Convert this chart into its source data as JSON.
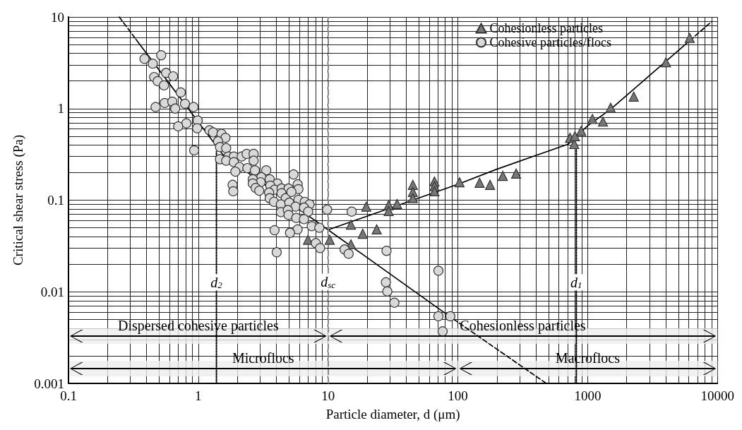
{
  "chart_data": {
    "type": "scatter",
    "xlabel": "Particle diameter, d (μm)",
    "ylabel": "Critical shear stress (Pa)",
    "log": "xy",
    "grid": true,
    "legend": "top right",
    "xlim": [
      0.1,
      10000
    ],
    "ylim": [
      0.001,
      10
    ],
    "xticks": [
      0.1,
      {
        "value": 0.2,
        "label": null
      },
      {
        "value": 0.3,
        "label": null
      },
      {
        "value": 0.4,
        "label": null
      },
      {
        "value": 0.5,
        "label": null
      },
      {
        "value": 0.6,
        "label": null
      },
      {
        "value": 0.7,
        "label": null
      },
      {
        "value": 0.8,
        "label": null
      },
      {
        "value": 0.9,
        "label": null
      },
      1,
      {
        "value": 2,
        "label": null
      },
      {
        "value": 3,
        "label": null
      },
      {
        "value": 4,
        "label": null
      },
      {
        "value": 5,
        "label": null
      },
      {
        "value": 6,
        "label": null
      },
      {
        "value": 7,
        "label": null
      },
      {
        "value": 8,
        "label": null
      },
      {
        "value": 9,
        "label": null
      },
      10,
      {
        "value": 20,
        "label": null
      },
      {
        "value": 30,
        "label": null
      },
      {
        "value": 40,
        "label": null
      },
      {
        "value": 50,
        "label": null
      },
      {
        "value": 60,
        "label": null
      },
      {
        "value": 70,
        "label": null
      },
      {
        "value": 80,
        "label": null
      },
      {
        "value": 90,
        "label": null
      },
      100,
      {
        "value": 200,
        "label": null
      },
      {
        "value": 300,
        "label": null
      },
      {
        "value": 400,
        "label": null
      },
      {
        "value": 500,
        "label": null
      },
      {
        "value": 600,
        "label": null
      },
      {
        "value": 700,
        "label": null
      },
      {
        "value": 800,
        "label": null
      },
      {
        "value": 900,
        "label": null
      },
      1000,
      {
        "value": 2000,
        "label": null
      },
      {
        "value": 3000,
        "label": null
      },
      {
        "value": 4000,
        "label": null
      },
      {
        "value": 5000,
        "label": null
      },
      {
        "value": 6000,
        "label": null
      },
      {
        "value": 7000,
        "label": null
      },
      {
        "value": 8000,
        "label": null
      },
      {
        "value": 9000,
        "label": null
      },
      10000
    ],
    "yticks": [
      0.001,
      {
        "value": 0.002,
        "label": null
      },
      {
        "value": 0.003,
        "label": null
      },
      {
        "value": 0.004,
        "label": null
      },
      {
        "value": 0.005,
        "label": null
      },
      {
        "value": 0.006,
        "label": null
      },
      {
        "value": 0.007,
        "label": null
      },
      {
        "value": 0.008,
        "label": null
      },
      {
        "value": 0.009,
        "label": null
      },
      0.01,
      {
        "value": 0.02,
        "label": null
      },
      {
        "value": 0.03,
        "label": null
      },
      {
        "value": 0.04,
        "label": null
      },
      {
        "value": 0.05,
        "label": null
      },
      {
        "value": 0.06,
        "label": null
      },
      {
        "value": 0.07,
        "label": null
      },
      {
        "value": 0.08,
        "label": null
      },
      {
        "value": 0.09,
        "label": null
      },
      0.1,
      {
        "value": 0.2,
        "label": null
      },
      {
        "value": 0.3,
        "label": null
      },
      {
        "value": 0.4,
        "label": null
      },
      {
        "value": 0.5,
        "label": null
      },
      {
        "value": 0.6,
        "label": null
      },
      {
        "value": 0.7,
        "label": null
      },
      {
        "value": 0.8,
        "label": null
      },
      {
        "value": 0.9,
        "label": null
      },
      1,
      {
        "value": 2,
        "label": null
      },
      {
        "value": 3,
        "label": null
      },
      {
        "value": 4,
        "label": null
      },
      {
        "value": 5,
        "label": null
      },
      {
        "value": 6,
        "label": null
      },
      {
        "value": 7,
        "label": null
      },
      {
        "value": 8,
        "label": null
      },
      {
        "value": 9,
        "label": null
      },
      10
    ],
    "series": [
      {
        "name": "Cohesionless particles",
        "type": "scatter",
        "marker": "triangle",
        "color": "#777777",
        "x": [
          7.0,
          10.3,
          15,
          15,
          18.5,
          23.7,
          19.7,
          29.3,
          29.3,
          34,
          45,
          45,
          45,
          66,
          66,
          66,
          103,
          147,
          177,
          222,
          281,
          731,
          788,
          798,
          892,
          1088,
          1312,
          1503,
          2265,
          4010,
          6110
        ],
        "values": [
          0.037,
          0.037,
          0.054,
          0.033,
          0.043,
          0.048,
          0.085,
          0.088,
          0.076,
          0.091,
          0.147,
          0.123,
          0.105,
          0.16,
          0.142,
          0.125,
          0.157,
          0.155,
          0.147,
          0.184,
          0.195,
          0.48,
          0.41,
          0.5,
          0.57,
          0.77,
          0.72,
          1.02,
          1.35,
          3.2,
          5.9
        ]
      },
      {
        "name": "Cohesive particles/flocs",
        "type": "scatter",
        "marker": "circle",
        "color": "#d9d9d9",
        "x": [
          0.385,
          0.518,
          0.446,
          0.565,
          0.64,
          0.457,
          0.487,
          0.544,
          0.733,
          0.469,
          0.551,
          0.631,
          0.664,
          0.79,
          0.92,
          0.99,
          0.98,
          0.81,
          0.7,
          0.93,
          1.22,
          1.3,
          1.51,
          1.62,
          1.42,
          1.47,
          1.64,
          1.71,
          1.88,
          2.16,
          1.47,
          1.64,
          1.88,
          2.08,
          1.93,
          1.84,
          1.86,
          2.36,
          2.67,
          2.67,
          2.39,
          2.73,
          3.34,
          3.06,
          2.63,
          3.02,
          3.55,
          4.07,
          2.63,
          2.77,
          2.95,
          3.59,
          3.87,
          4.38,
          4.96,
          5.42,
          5.83,
          5.91,
          3.51,
          3.55,
          4.38,
          4.72,
          5.22,
          3.83,
          4.33,
          5.91,
          5.03,
          6.61,
          7.2,
          5.62,
          6.52,
          7.03,
          4.33,
          4.9,
          4.96,
          5.69,
          6.52,
          7.48,
          8.57,
          9.83,
          5.83,
          5.09,
          3.87,
          4.02,
          8.05,
          8.68,
          13.4,
          14.4,
          15.2,
          28.2,
          70.8,
          27.9,
          28.6,
          32.4,
          70.8,
          87.5,
          76.3
        ],
        "values": [
          3.49,
          3.82,
          3.09,
          2.45,
          2.25,
          2.21,
          1.99,
          1.79,
          1.5,
          1.04,
          1.15,
          1.19,
          1.0,
          1.13,
          1.04,
          0.74,
          0.61,
          0.69,
          0.64,
          0.35,
          0.58,
          0.55,
          0.53,
          0.48,
          0.44,
          0.38,
          0.37,
          0.3,
          0.3,
          0.3,
          0.28,
          0.27,
          0.26,
          0.23,
          0.205,
          0.147,
          0.125,
          0.32,
          0.32,
          0.27,
          0.224,
          0.212,
          0.212,
          0.178,
          0.169,
          0.157,
          0.169,
          0.152,
          0.152,
          0.136,
          0.127,
          0.144,
          0.13,
          0.134,
          0.134,
          0.191,
          0.149,
          0.132,
          0.121,
          0.105,
          0.119,
          0.105,
          0.123,
          0.096,
          0.09,
          0.101,
          0.094,
          0.096,
          0.09,
          0.085,
          0.083,
          0.075,
          0.074,
          0.078,
          0.069,
          0.064,
          0.062,
          0.052,
          0.05,
          0.079,
          0.048,
          0.044,
          0.047,
          0.027,
          0.034,
          0.03,
          0.029,
          0.026,
          0.075,
          0.028,
          0.017,
          0.0127,
          0.0101,
          0.0076,
          0.0054,
          0.0054,
          0.0037
        ]
      },
      {
        "type": "line",
        "line_style": "dashed",
        "color": "#000000",
        "x": [
          0.246,
          0.331
        ],
        "values": [
          10,
          5.7
        ]
      },
      {
        "type": "line",
        "line_style": "solid",
        "color": "#000000",
        "x": [
          0.331,
          1.56,
          10,
          83
        ],
        "values": [
          5.7,
          0.31,
          0.0475,
          0.0056
        ]
      },
      {
        "type": "line",
        "line_style": "dashed",
        "color": "#000000",
        "x": [
          83,
          480
        ],
        "values": [
          0.0056,
          0.001
        ]
      },
      {
        "type": "line",
        "line_style": "solid",
        "color": "#000000",
        "x": [
          10,
          100,
          198,
          705,
          1000,
          1500,
          6110
        ],
        "values": [
          0.0475,
          0.149,
          0.217,
          0.408,
          0.65,
          0.98,
          5.5
        ]
      },
      {
        "type": "line",
        "line_style": "dashed",
        "color": "#000000",
        "x": [
          6110,
          9000
        ],
        "values": [
          5.5,
          8.9
        ]
      },
      {
        "type": "line",
        "line_style": "dotted",
        "color": "#000000",
        "x": [
          1.38,
          1.38
        ],
        "values": [
          0.001,
          0.34
        ]
      },
      {
        "type": "line",
        "line_style": "dotted",
        "color": "#000000",
        "x": [
          818,
          818
        ],
        "values": [
          0.001,
          0.41
        ]
      }
    ],
    "ref_lines": [
      {
        "axis": "x",
        "value": 10,
        "label": "d$_{sc}$",
        "color": "#888888",
        "line_style": "dashed"
      }
    ],
    "annotations": [
      {
        "text": "d$_{2}$",
        "x": 1.38,
        "y": 0.0127
      },
      {
        "text": "d$_{1}$",
        "x": 818,
        "y": 0.0127
      }
    ],
    "bands": [
      {
        "axis": "x",
        "from": 0.1,
        "to": 10,
        "label": "Dispersed cohesive particles"
      },
      {
        "axis": "x",
        "from": 10,
        "to": 10000,
        "label": "Cohesionless particles"
      },
      {
        "axis": "x",
        "from": 0.1,
        "to": 100,
        "label": "Microflocs"
      },
      {
        "axis": "x",
        "from": 100,
        "to": 10000,
        "label": "Macroflocs"
      }
    ]
  }
}
